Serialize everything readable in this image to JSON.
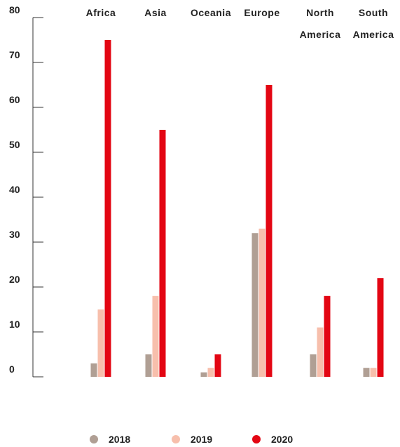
{
  "chart_data": {
    "type": "bar",
    "categories": [
      "Africa",
      "Asia",
      "Oceania",
      "Europe",
      "North America",
      "South America"
    ],
    "category_label_lines": [
      [
        "Africa"
      ],
      [
        "Asia"
      ],
      [
        "Oceania"
      ],
      [
        "Europe"
      ],
      [
        "North",
        "America"
      ],
      [
        "South",
        "America"
      ]
    ],
    "series": [
      {
        "name": "2018",
        "color": "#b09f94",
        "values": [
          3,
          5,
          1,
          32,
          5,
          2
        ]
      },
      {
        "name": "2019",
        "color": "#f7bfac",
        "values": [
          15,
          18,
          2,
          33,
          11,
          2
        ]
      },
      {
        "name": "2020",
        "color": "#e30613",
        "values": [
          75,
          55,
          5,
          65,
          18,
          22
        ]
      }
    ],
    "ylim": [
      0,
      80
    ],
    "yticks": [
      "0",
      "10",
      "20",
      "30",
      "40",
      "50",
      "60",
      "70",
      "80"
    ],
    "category_labels_position": "top",
    "legend_position": "bottom-center",
    "grid": false
  }
}
